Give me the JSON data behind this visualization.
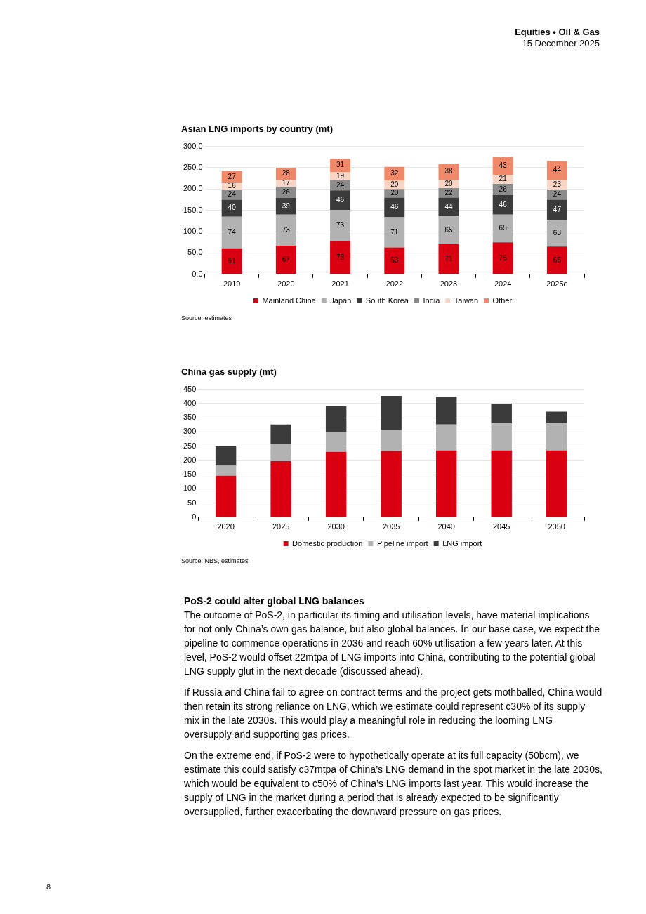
{
  "chart_data": [
    {
      "type": "other",
      "title": "Equities • Oil & Gas",
      "subtitle": "15 December 2025",
      "annotations": [
        "8"
      ]
    },
    {
      "type": "bar",
      "title": "Asian LNG imports by country (mt)",
      "categories": [
        "2019",
        "2020",
        "2021",
        "2022",
        "2023",
        "2024",
        "2025e"
      ],
      "stacked": true,
      "series": [
        {
          "name": "Mainland China",
          "color": "#db0011",
          "values": [
            61,
            67,
            78,
            63,
            71,
            75,
            65
          ]
        },
        {
          "name": "Japan",
          "color": "#b2b2b2",
          "values": [
            74,
            73,
            73,
            71,
            65,
            65,
            63
          ]
        },
        {
          "name": "South Korea",
          "color": "#3b3b3b",
          "values": [
            40,
            39,
            46,
            46,
            44,
            46,
            47
          ]
        },
        {
          "name": "India",
          "color": "#8c8c8c",
          "values": [
            24,
            26,
            24,
            20,
            22,
            26,
            24
          ]
        },
        {
          "name": "Taiwan",
          "color": "#f9d5c5",
          "values": [
            16,
            17,
            19,
            20,
            20,
            21,
            23
          ]
        },
        {
          "name": "Other",
          "color": "#f0896a",
          "values": [
            27,
            28,
            31,
            32,
            38,
            43,
            44
          ]
        }
      ],
      "ylim": [
        0,
        300
      ],
      "yticks": [
        {
          "value": 0,
          "label": "0.0"
        },
        {
          "value": 50,
          "label": "50.0"
        },
        {
          "value": 100,
          "label": "100.0"
        },
        {
          "value": 150,
          "label": "150.0"
        },
        {
          "value": 200,
          "label": "200.0"
        },
        {
          "value": 250,
          "label": "250.0"
        },
        {
          "value": 300,
          "label": "300.0"
        }
      ],
      "grid": "y",
      "legend": "bottom",
      "data_labels": true,
      "annotations": [
        "Source: estimates"
      ]
    },
    {
      "type": "bar",
      "title": "China gas supply (mt)",
      "categories": [
        "2020",
        "2025",
        "2030",
        "2035",
        "2040",
        "2045",
        "2050"
      ],
      "stacked": true,
      "series": [
        {
          "name": "Domestic production",
          "color": "#db0011",
          "values": [
            146,
            198,
            230,
            233,
            235,
            235,
            235
          ]
        },
        {
          "name": "Pipeline import",
          "color": "#b2b2b2",
          "values": [
            35,
            61,
            71,
            74,
            91,
            95,
            95
          ]
        },
        {
          "name": "LNG import",
          "color": "#3b3b3b",
          "values": [
            68,
            67,
            89,
            120,
            98,
            69,
            41
          ]
        }
      ],
      "ylim": [
        0,
        450
      ],
      "yticks": [
        0,
        50,
        100,
        150,
        200,
        250,
        300,
        350,
        400,
        450
      ],
      "grid": "y",
      "legend": "bottom",
      "annotations": [
        "Source: NBS, estimates"
      ]
    },
    {
      "type": "other",
      "title": "PoS-2 could alter global LNG balances",
      "annotations": [
        "The outcome of PoS-2, in particular its timing and utilisation levels, have material implications for not only China’s own gas balance, but also global balances. In our base case, we expect the pipeline to commence operations in 2036 and reach 60% utilisation a few years later. At this level, PoS-2 would offset 22mtpa of LNG imports into China, contributing to the potential global LNG supply glut in the next decade (discussed ahead).",
        "If Russia and China fail to agree on contract terms and the project gets mothballed, China would then retain its strong reliance on LNG, which we estimate could represent c30% of its supply mix in the late 2030s. This would play a meaningful role in reducing the looming LNG oversupply and supporting gas prices.",
        "On the extreme end, if PoS-2 were to hypothetically operate at its full capacity (50bcm), we estimate this could satisfy c37mtpa of China’s LNG demand in the spot market in the late 2030s, which would be equivalent to c50% of China’s LNG imports last year. This would increase the supply of LNG in the market during a period that is already expected to be significantly oversupplied, further exacerbating the downward pressure on gas prices."
      ]
    }
  ]
}
